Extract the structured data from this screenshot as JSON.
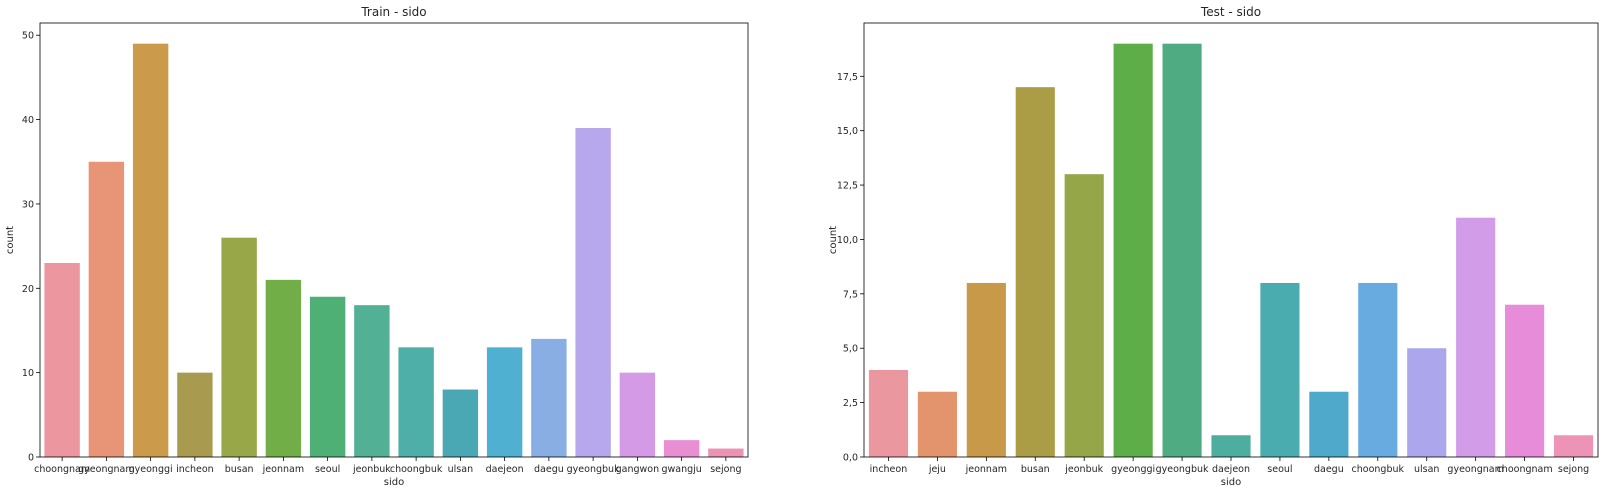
{
  "chart_data": [
    {
      "type": "bar",
      "title": "Train - sido",
      "xlabel": "sido",
      "ylabel": "count",
      "ylim": [
        0,
        51.45
      ],
      "yticks": [
        0,
        10,
        20,
        30,
        40,
        50
      ],
      "ytick_labels": [
        "0",
        "10",
        "20",
        "30",
        "40",
        "50"
      ],
      "grid": false,
      "categories": [
        "choongnam",
        "gyeongnam",
        "gyeonggi",
        "incheon",
        "busan",
        "jeonnam",
        "seoul",
        "jeonbuk",
        "choongbuk",
        "ulsan",
        "daejeon",
        "daegu",
        "gyeongbuk",
        "gangwon",
        "gwangju",
        "sejong"
      ],
      "values": [
        23,
        35,
        49,
        10,
        26,
        21,
        19,
        18,
        13,
        8,
        13,
        14,
        39,
        10,
        2,
        1
      ],
      "colors": [
        "#ec97a0",
        "#e89477",
        "#cb9a4b",
        "#a89b4f",
        "#98a848",
        "#72ae48",
        "#4fb075",
        "#52b094",
        "#4eaea8",
        "#4aa8b4",
        "#4fb0d1",
        "#88aee4",
        "#b7a7ed",
        "#d49ae5",
        "#e88ed3",
        "#ec93b4"
      ]
    },
    {
      "type": "bar",
      "title": "Test - sido",
      "xlabel": "sido",
      "ylabel": "count",
      "ylim": [
        0,
        19.95
      ],
      "yticks": [
        0,
        2.5,
        5,
        7.5,
        10,
        12.5,
        15,
        17.5
      ],
      "ytick_labels": [
        "0,0",
        "2,5",
        "5,0",
        "7,5",
        "10,0",
        "12,5",
        "15,0",
        "17,5"
      ],
      "grid": false,
      "categories": [
        "incheon",
        "jeju",
        "jeonnam",
        "busan",
        "jeonbuk",
        "gyeonggi",
        "gyeongbuk",
        "daejeon",
        "seoul",
        "daegu",
        "choongbuk",
        "ulsan",
        "gyeongnam",
        "choongnam",
        "sejong"
      ],
      "values": [
        4,
        3,
        8,
        17,
        13,
        19,
        19,
        1,
        8,
        3,
        8,
        5,
        11,
        7,
        1
      ],
      "colors": [
        "#ea979f",
        "#e4946c",
        "#c9994a",
        "#ab9c46",
        "#94a647",
        "#5dae48",
        "#4fac82",
        "#4daea0",
        "#4bacb0",
        "#4ea9ca",
        "#67abe0",
        "#aca7ed",
        "#d39ce8",
        "#e78cd8",
        "#ed94b6"
      ]
    }
  ]
}
